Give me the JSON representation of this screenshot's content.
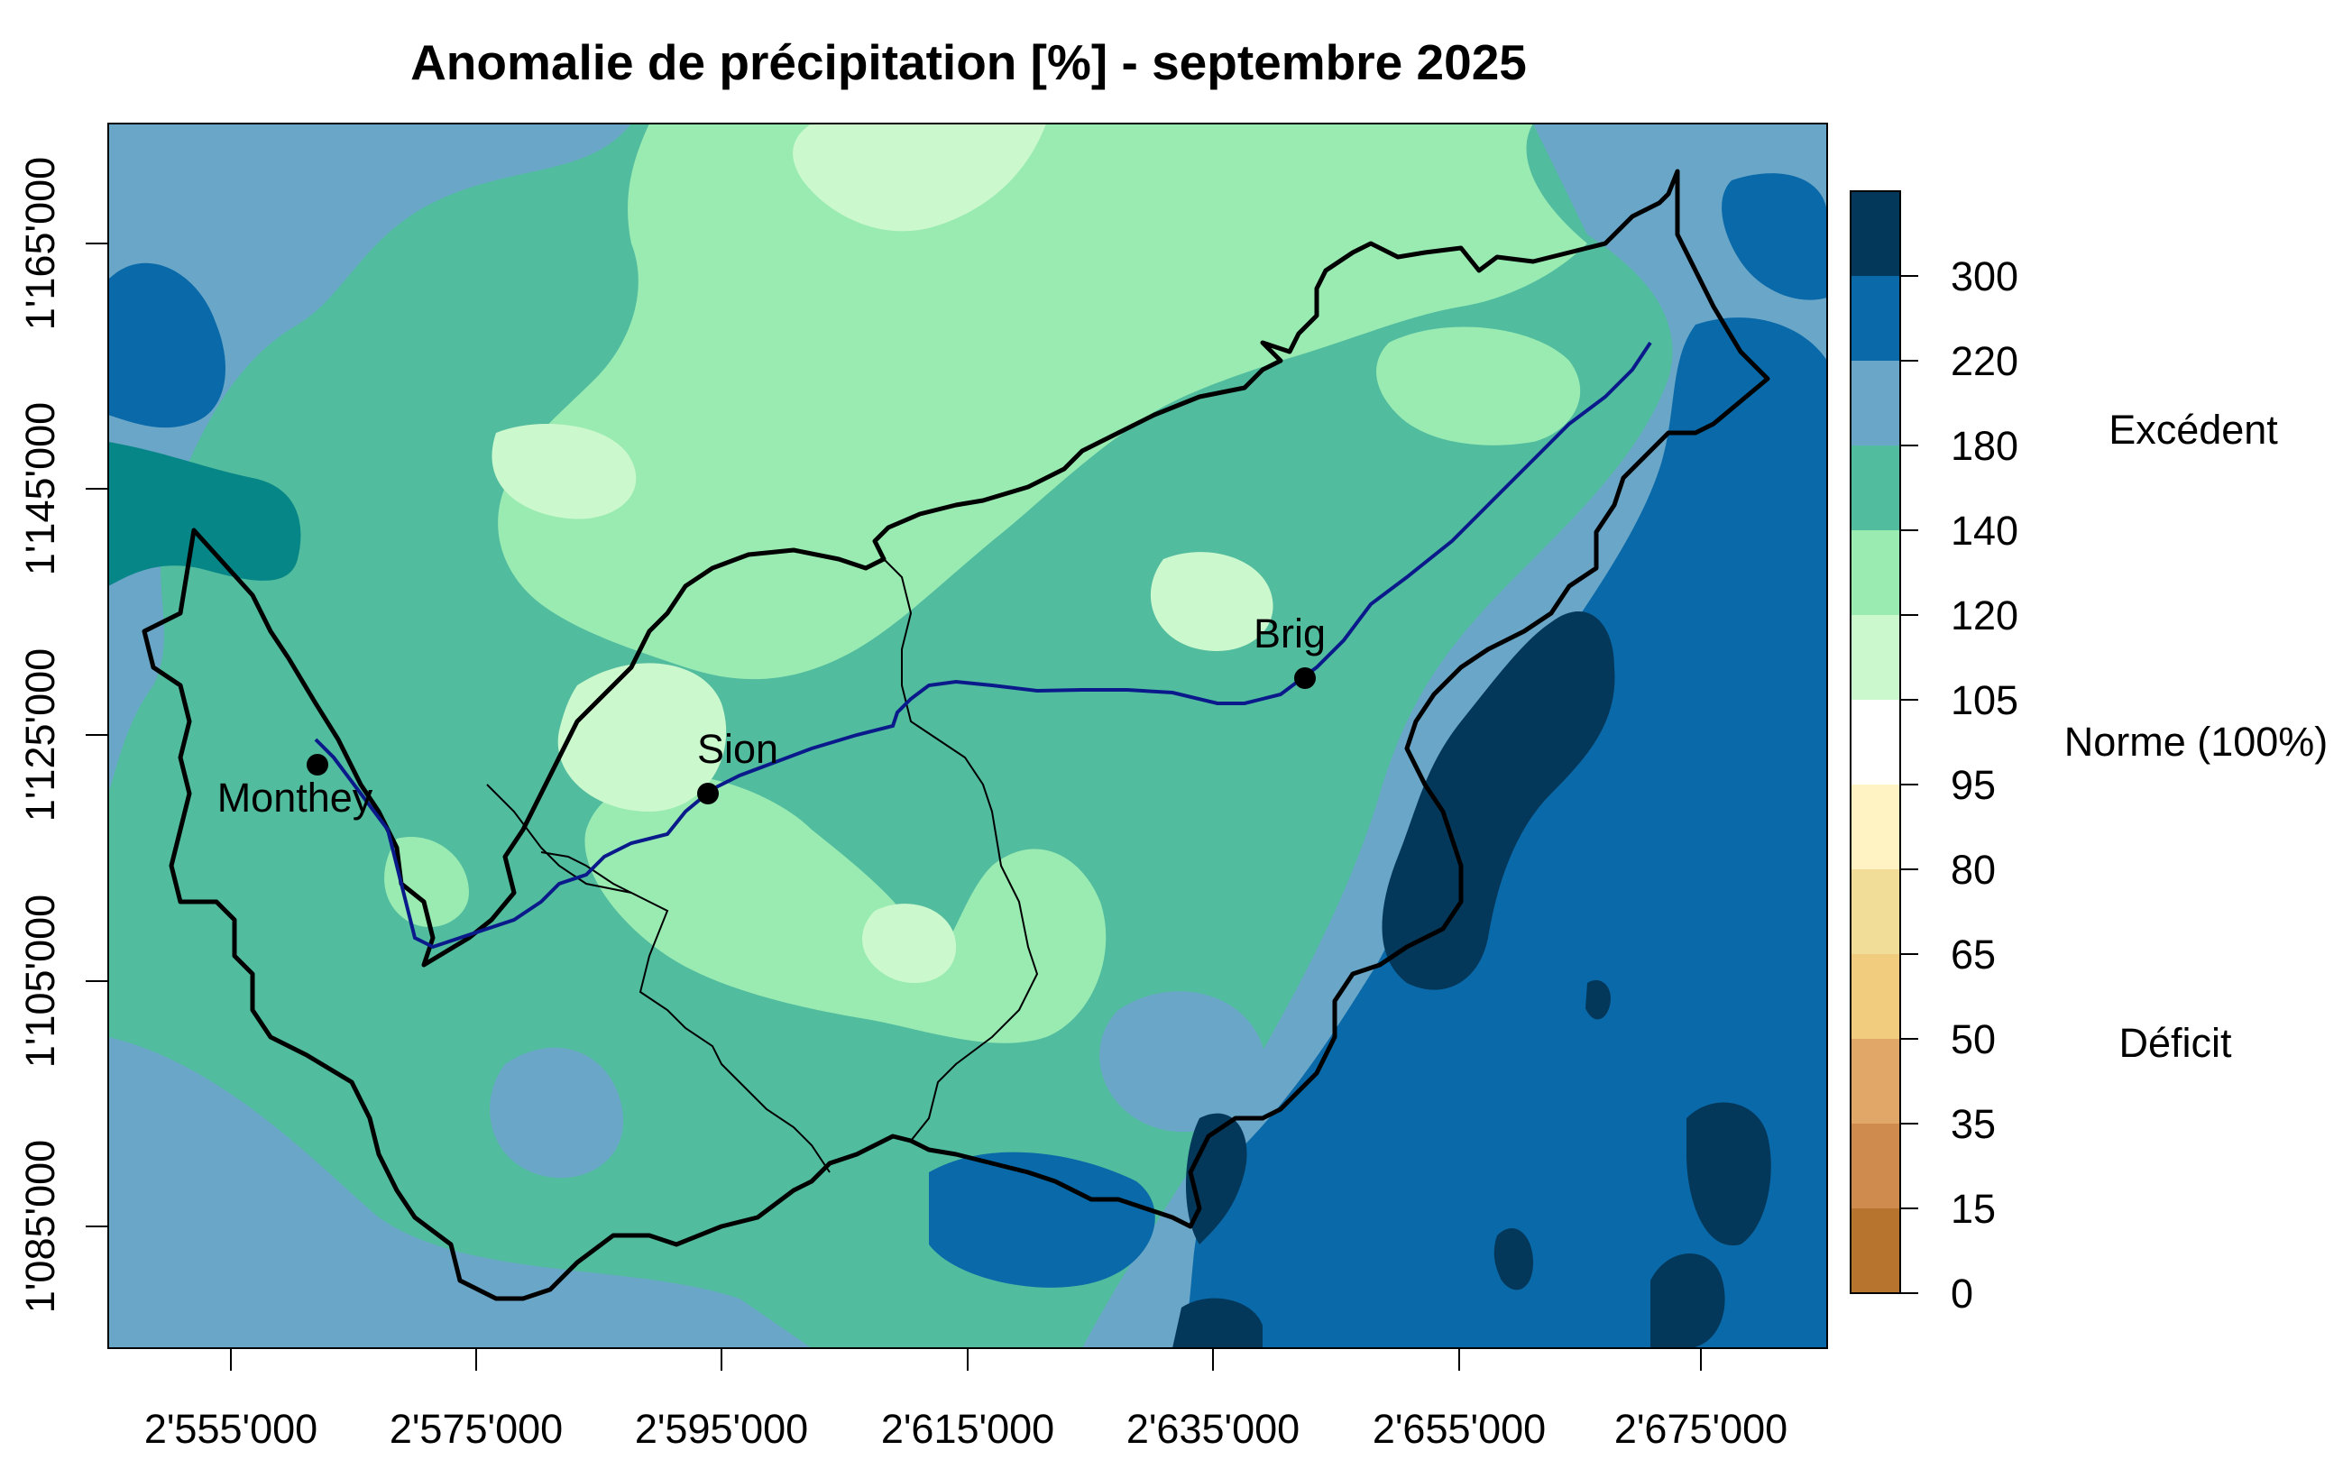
{
  "title": "Anomalie de précipitation [%] - septembre 2025",
  "x_ticks": [
    "2'555'000",
    "2'575'000",
    "2'595'000",
    "2'615'000",
    "2'635'000",
    "2'655'000",
    "2'675'000"
  ],
  "y_ticks": [
    "1'165'000",
    "1'145'000",
    "1'125'000",
    "1'105'000",
    "1'085'000"
  ],
  "cities": [
    {
      "name": "Monthey"
    },
    {
      "name": "Sion"
    },
    {
      "name": "Brig"
    }
  ],
  "legend": {
    "breaks": [
      "300",
      "220",
      "180",
      "140",
      "120",
      "105",
      "95",
      "80",
      "65",
      "50",
      "35",
      "15",
      "0"
    ],
    "classes": [
      {
        "range": "> 300",
        "color": "#04385b"
      },
      {
        "range": "220-300",
        "color": "#0a6aa9"
      },
      {
        "range": "180-220",
        "color": "#6aa6c8"
      },
      {
        "range": "140-180",
        "color": "#52bc9f"
      },
      {
        "range": "120-140",
        "color": "#99ebb2"
      },
      {
        "range": "105-120",
        "color": "#ccf8cd"
      },
      {
        "range": "95-105",
        "color": "#ffffff"
      },
      {
        "range": "80-95",
        "color": "#fff3c4"
      },
      {
        "range": "65-80",
        "color": "#f2dd98"
      },
      {
        "range": "50-65",
        "color": "#f1cb7e"
      },
      {
        "range": "35-50",
        "color": "#e0a769"
      },
      {
        "range": "15-35",
        "color": "#cf8a4e"
      },
      {
        "range": "0-15",
        "color": "#b7742f"
      }
    ],
    "label_excess": "Excédent",
    "label_norm": "Norme (100%)",
    "label_deficit": "Déficit"
  },
  "colors": {
    "river": "#0a1a8a",
    "border": "#000000"
  }
}
